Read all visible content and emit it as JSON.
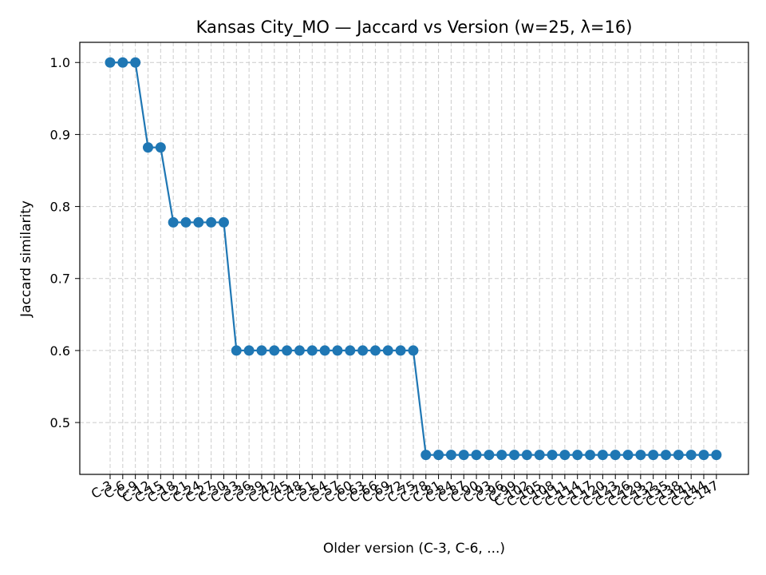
{
  "chart_data": {
    "type": "line",
    "title": "Kansas City_MO — Jaccard vs Version (w=25, λ=16)",
    "xlabel": "Older version (C-3, C-6, ...)",
    "ylabel": "Jaccard similarity",
    "ylim": [
      0.428,
      1.028
    ],
    "yticks": [
      "0.5",
      "0.6",
      "0.7",
      "0.8",
      "0.9",
      "1.0"
    ],
    "ytick_values": [
      0.5,
      0.6,
      0.7,
      0.8,
      0.9,
      1.0
    ],
    "grid": true,
    "line_color": "#1f77b4",
    "grid_color": "#cccccc",
    "categories": [
      "C-3",
      "C-6",
      "C-9",
      "C-12",
      "C-15",
      "C-18",
      "C-21",
      "C-24",
      "C-27",
      "C-30",
      "C-33",
      "C-36",
      "C-39",
      "C-42",
      "C-45",
      "C-48",
      "C-51",
      "C-54",
      "C-57",
      "C-60",
      "C-63",
      "C-66",
      "C-69",
      "C-72",
      "C-75",
      "C-78",
      "C-81",
      "C-84",
      "C-87",
      "C-90",
      "C-93",
      "C-96",
      "C-99",
      "C-102",
      "C-105",
      "C-108",
      "C-111",
      "C-114",
      "C-117",
      "C-120",
      "C-123",
      "C-126",
      "C-129",
      "C-132",
      "C-135",
      "C-138",
      "C-141",
      "C-144",
      "C-147"
    ],
    "series": [
      {
        "name": "Jaccard similarity",
        "values": [
          1.0,
          1.0,
          1.0,
          0.882,
          0.882,
          0.778,
          0.778,
          0.778,
          0.778,
          0.778,
          0.6,
          0.6,
          0.6,
          0.6,
          0.6,
          0.6,
          0.6,
          0.6,
          0.6,
          0.6,
          0.6,
          0.6,
          0.6,
          0.6,
          0.6,
          0.455,
          0.455,
          0.455,
          0.455,
          0.455,
          0.455,
          0.455,
          0.455,
          0.455,
          0.455,
          0.455,
          0.455,
          0.455,
          0.455,
          0.455,
          0.455,
          0.455,
          0.455,
          0.455,
          0.455,
          0.455,
          0.455,
          0.455,
          0.455
        ]
      }
    ]
  }
}
